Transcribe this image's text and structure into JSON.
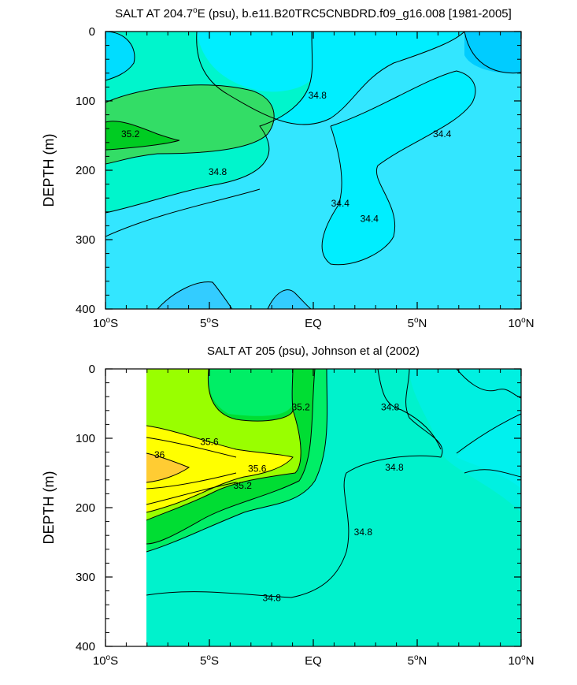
{
  "chart_data": [
    {
      "type": "heatmap",
      "title": {
        "pre": "SALT AT 204.7",
        "sup": "o",
        "post": "E (psu), b.e11.B20TRC5CNBDRD.f09_g16.008 [1981-2005]"
      },
      "ylabel": "DEPTH (m)",
      "xlim": [
        -10,
        10
      ],
      "ylim": [
        0,
        400
      ],
      "y_inverted": true,
      "x_ticks": [
        {
          "value": -10,
          "num": "10",
          "deg": "o",
          "hemi": "S"
        },
        {
          "value": -5,
          "num": "5",
          "deg": "o",
          "hemi": "S"
        },
        {
          "value": 0,
          "num": "EQ",
          "deg": "",
          "hemi": ""
        },
        {
          "value": 5,
          "num": "5",
          "deg": "o",
          "hemi": "N"
        },
        {
          "value": 10,
          "num": "10",
          "deg": "o",
          "hemi": "N"
        }
      ],
      "y_ticks": [
        "0",
        "100",
        "200",
        "300",
        "400"
      ],
      "contour_labels": [
        {
          "text": "35.2",
          "x": -8.8,
          "y": 148
        },
        {
          "text": "34.8",
          "x": 0.2,
          "y": 92
        },
        {
          "text": "34.8",
          "x": -4.6,
          "y": 202
        },
        {
          "text": "34.4",
          "x": 1.3,
          "y": 248
        },
        {
          "text": "34.4",
          "x": 2.7,
          "y": 270
        },
        {
          "text": "34.4",
          "x": 6.2,
          "y": 148
        }
      ]
    },
    {
      "type": "heatmap",
      "title": {
        "pre": "SALT AT 205 (psu), Johnson et al (2002)",
        "sup": "",
        "post": ""
      },
      "ylabel": "DEPTH (m)",
      "xlim": [
        -10,
        10
      ],
      "ylim": [
        0,
        400
      ],
      "y_inverted": true,
      "data_x_range": [
        -8,
        10
      ],
      "x_ticks": [
        {
          "value": -10,
          "num": "10",
          "deg": "o",
          "hemi": "S"
        },
        {
          "value": -5,
          "num": "5",
          "deg": "o",
          "hemi": "S"
        },
        {
          "value": 0,
          "num": "EQ",
          "deg": "",
          "hemi": ""
        },
        {
          "value": 5,
          "num": "5",
          "deg": "o",
          "hemi": "N"
        },
        {
          "value": 10,
          "num": "10",
          "deg": "o",
          "hemi": "N"
        }
      ],
      "y_ticks": [
        "0",
        "100",
        "200",
        "300",
        "400"
      ],
      "contour_labels": [
        {
          "text": "35.2",
          "x": -0.6,
          "y": 55
        },
        {
          "text": "34.8",
          "x": 3.7,
          "y": 55
        },
        {
          "text": "35.6",
          "x": -5.0,
          "y": 105
        },
        {
          "text": "36",
          "x": -7.4,
          "y": 124
        },
        {
          "text": "35.6",
          "x": -2.7,
          "y": 144
        },
        {
          "text": "35.2",
          "x": -3.4,
          "y": 168
        },
        {
          "text": "34.8",
          "x": 3.9,
          "y": 142
        },
        {
          "text": "34.8",
          "x": 2.4,
          "y": 235
        },
        {
          "text": "34.8",
          "x": -2.0,
          "y": 330
        }
      ]
    }
  ]
}
